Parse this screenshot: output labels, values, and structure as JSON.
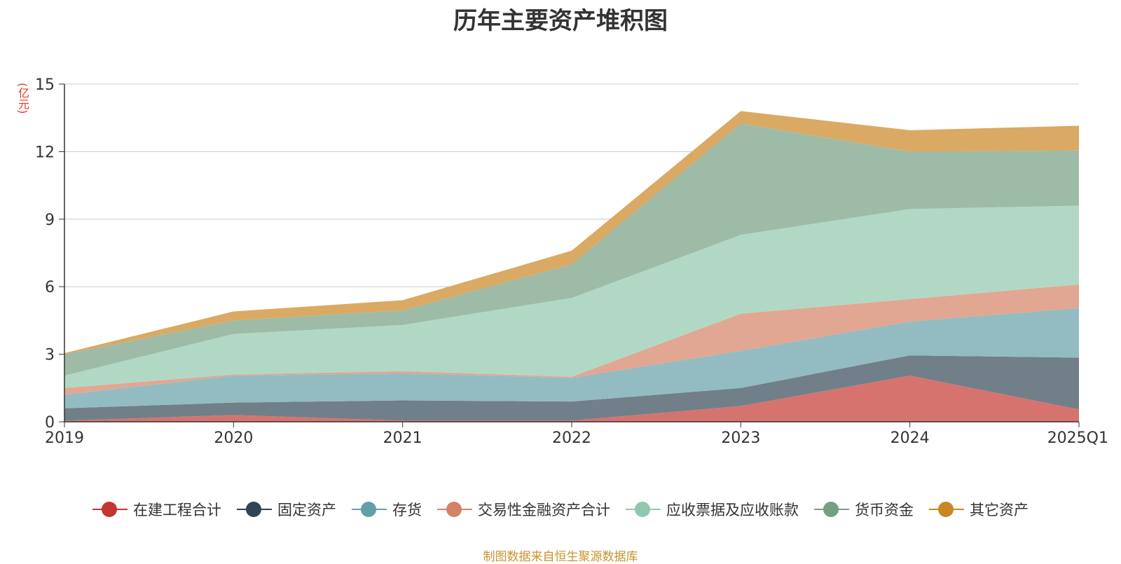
{
  "chart_data": {
    "type": "area",
    "stacked": true,
    "title": "历年主要资产堆积图",
    "unit_label": "(亿元)",
    "categories": [
      "2019",
      "2020",
      "2021",
      "2022",
      "2023",
      "2024",
      "2025Q1"
    ],
    "ylim": [
      0,
      15
    ],
    "yticks": [
      "0",
      "3",
      "6",
      "9",
      "12",
      "15"
    ],
    "grid": true,
    "legend_position": "bottom",
    "series": [
      {
        "name": "在建工程合计",
        "color": "#c23531",
        "fill": "#d6736f",
        "values": [
          0.05,
          0.3,
          0.05,
          0.05,
          0.7,
          2.05,
          0.55
        ]
      },
      {
        "name": "固定资产",
        "color": "#2f4554",
        "fill": "#717f89",
        "values": [
          0.55,
          0.55,
          0.9,
          0.85,
          0.8,
          0.9,
          2.3
        ]
      },
      {
        "name": "存货",
        "color": "#61a0a8",
        "fill": "#92bcc2",
        "values": [
          0.6,
          1.2,
          1.2,
          1.05,
          1.65,
          1.5,
          2.2
        ]
      },
      {
        "name": "交易性金融资产合计",
        "color": "#d48265",
        "fill": "#e1a792",
        "values": [
          0.3,
          0.05,
          0.1,
          0.05,
          1.65,
          1.0,
          1.05
        ]
      },
      {
        "name": "应收票据及应收账款",
        "color": "#91c7ae",
        "fill": "#b1d8c5",
        "values": [
          0.55,
          1.8,
          2.05,
          3.5,
          3.5,
          4.0,
          3.5
        ]
      },
      {
        "name": "货币资金",
        "color": "#749f83",
        "fill": "#9ebba8",
        "values": [
          0.95,
          0.6,
          0.65,
          1.5,
          4.95,
          2.55,
          2.45
        ]
      },
      {
        "name": "其它资产",
        "color": "#ca8622",
        "fill": "#daa963",
        "values": [
          0.05,
          0.4,
          0.45,
          0.6,
          0.55,
          0.95,
          1.1
        ]
      }
    ]
  },
  "source_note": "制图数据来自恒生聚源数据库"
}
